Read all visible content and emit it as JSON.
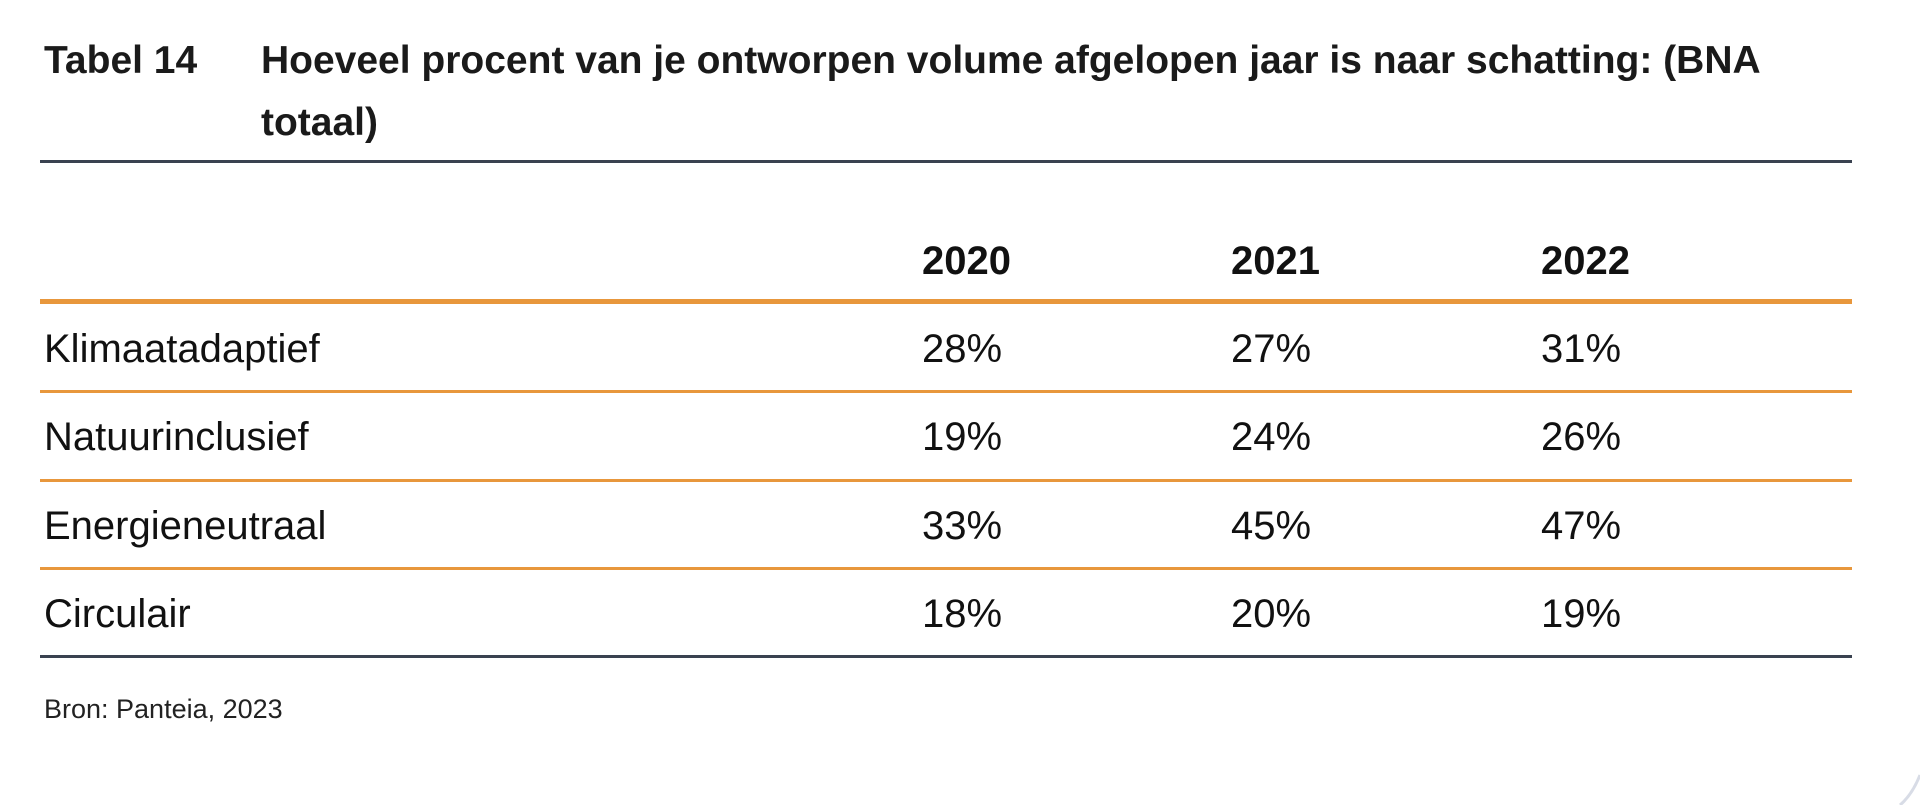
{
  "table": {
    "number": "Tabel 14",
    "title": "Hoeveel procent van je ontworpen volume afgelopen jaar is naar schatting: (BNA totaal)",
    "columns": [
      "2020",
      "2021",
      "2022"
    ],
    "rows": [
      {
        "label": "Klimaatadaptief",
        "values": [
          "28%",
          "27%",
          "31%"
        ]
      },
      {
        "label": "Natuurinclusief",
        "values": [
          "19%",
          "24%",
          "26%"
        ]
      },
      {
        "label": "Energieneutraal",
        "values": [
          "33%",
          "45%",
          "47%"
        ]
      },
      {
        "label": "Circulair",
        "values": [
          "18%",
          "20%",
          "19%"
        ]
      }
    ],
    "source": "Bron: Panteia, 2023"
  },
  "colors": {
    "accent": "#e8973c",
    "rule_dark": "#3a4250"
  }
}
